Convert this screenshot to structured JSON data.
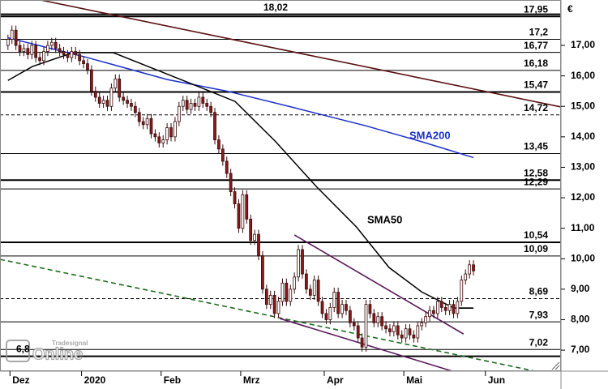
{
  "chart_data": {
    "type": "candlestick",
    "currency": "€",
    "watermark": [
      "Tradesignal",
      "Online"
    ],
    "xlim": [
      -2,
      139
    ],
    "ylim": [
      6.31,
      18.49
    ],
    "xticks": [
      {
        "value": 0.5,
        "label": "Dez"
      },
      {
        "value": 18.5,
        "label": "2020"
      },
      {
        "value": 38.5,
        "label": "Feb"
      },
      {
        "value": 58.5,
        "label": "Mrz"
      },
      {
        "value": 79.5,
        "label": "Apr"
      },
      {
        "value": 99.5,
        "label": "Mai"
      },
      {
        "value": 120,
        "label": "Jun"
      }
    ],
    "yticks": [
      {
        "value": 7,
        "label": "7,00"
      },
      {
        "value": 8,
        "label": "8,00"
      },
      {
        "value": 9,
        "label": "9,00"
      },
      {
        "value": 10,
        "label": "10,00"
      },
      {
        "value": 11,
        "label": "11,00"
      },
      {
        "value": 12,
        "label": "12,00"
      },
      {
        "value": 13,
        "label": "13,00"
      },
      {
        "value": 14,
        "label": "14,00"
      },
      {
        "value": 15,
        "label": "15,00"
      },
      {
        "value": 16,
        "label": "16,00"
      },
      {
        "value": 17,
        "label": "17,00"
      }
    ],
    "up_color": "#ffffff",
    "down_color": "#8b1a1a",
    "open": [
      17.0,
      17.2,
      17.5,
      17.0,
      16.8,
      16.9,
      16.7,
      17.0,
      16.6,
      16.5,
      16.8,
      17.0,
      17.1,
      16.9,
      16.8,
      16.7,
      16.6,
      16.8,
      16.7,
      16.5,
      16.4,
      16.2,
      15.5,
      15.3,
      15.1,
      15.2,
      15.0,
      15.6,
      15.9,
      15.3,
      15.2,
      15.1,
      15.0,
      14.8,
      14.5,
      14.4,
      14.6,
      14.1,
      14.0,
      13.8,
      13.9,
      14.3,
      14.0,
      14.5,
      15.0,
      15.2,
      14.9,
      15.1,
      15.0,
      15.3,
      15.1,
      15.0,
      14.8,
      13.9,
      13.6,
      13.2,
      12.8,
      12.2,
      11.8,
      11.0,
      12.1,
      11.3,
      10.6,
      10.8,
      10.1,
      9.0,
      8.5,
      8.8,
      8.2,
      8.6,
      9.2,
      8.6,
      9.0,
      9.4,
      10.3,
      9.5,
      9.0,
      8.8,
      9.3,
      8.6,
      8.2,
      8.0,
      8.4,
      8.9,
      8.2,
      8.5,
      8.3,
      7.9,
      7.8,
      7.4,
      7.1,
      8.5,
      8.2,
      7.9,
      8.1,
      7.8,
      7.7,
      7.6,
      7.8,
      7.5,
      7.4,
      7.7,
      7.5,
      7.4,
      7.8,
      7.9,
      8.1,
      8.3,
      8.2,
      8.6,
      8.4,
      8.3,
      8.5,
      8.2,
      8.6,
      9.3,
      9.5,
      9.8
    ],
    "high": [
      17.35,
      17.65,
      17.65,
      17.15,
      17.05,
      17.05,
      17.15,
      17.15,
      16.75,
      16.95,
      17.15,
      17.25,
      17.25,
      17.05,
      16.95,
      16.85,
      16.95,
      16.95,
      16.85,
      16.65,
      16.55,
      16.35,
      15.65,
      15.45,
      15.35,
      15.35,
      15.75,
      16.05,
      16.05,
      15.45,
      15.35,
      15.25,
      15.15,
      14.95,
      14.65,
      14.75,
      14.75,
      14.25,
      14.15,
      14.05,
      14.45,
      14.45,
      14.65,
      15.15,
      15.35,
      15.35,
      15.25,
      15.25,
      15.45,
      15.45,
      15.25,
      15.15,
      14.95,
      14.05,
      13.75,
      13.35,
      12.95,
      12.35,
      11.95,
      12.25,
      12.25,
      11.45,
      10.95,
      10.95,
      10.25,
      9.15,
      8.95,
      8.95,
      8.75,
      9.35,
      9.35,
      9.15,
      9.55,
      10.45,
      10.45,
      9.65,
      9.15,
      9.45,
      9.45,
      8.75,
      8.35,
      8.55,
      9.05,
      9.05,
      8.65,
      8.65,
      8.45,
      8.05,
      7.95,
      7.55,
      8.65,
      8.65,
      8.35,
      8.25,
      8.25,
      7.95,
      7.85,
      7.95,
      7.95,
      7.65,
      7.85,
      7.85,
      7.65,
      7.95,
      8.05,
      8.25,
      8.45,
      8.45,
      8.75,
      8.75,
      8.55,
      8.65,
      8.65,
      8.75,
      9.45,
      9.65,
      9.95,
      9.95
    ],
    "low": [
      16.85,
      17.05,
      16.85,
      16.65,
      16.65,
      16.55,
      16.55,
      16.45,
      16.35,
      16.35,
      16.65,
      16.85,
      16.75,
      16.65,
      16.55,
      16.45,
      16.45,
      16.55,
      16.35,
      16.25,
      16.05,
      15.35,
      15.15,
      14.95,
      14.95,
      14.85,
      14.85,
      15.45,
      15.15,
      15.05,
      14.95,
      14.85,
      14.65,
      14.35,
      14.25,
      14.25,
      13.95,
      13.85,
      13.65,
      13.65,
      13.75,
      13.85,
      13.85,
      14.35,
      14.85,
      14.75,
      14.75,
      14.85,
      14.85,
      14.95,
      14.85,
      14.65,
      13.75,
      13.45,
      13.05,
      12.65,
      12.05,
      11.65,
      10.85,
      10.85,
      11.15,
      10.45,
      10.45,
      9.95,
      8.85,
      8.35,
      8.35,
      8.05,
      8.05,
      8.45,
      8.45,
      8.45,
      8.85,
      9.25,
      9.35,
      8.85,
      8.65,
      8.65,
      8.45,
      8.05,
      7.85,
      7.85,
      8.25,
      8.05,
      8.05,
      8.15,
      7.75,
      7.65,
      7.25,
      6.95,
      6.95,
      8.05,
      7.75,
      7.75,
      7.65,
      7.55,
      7.45,
      7.45,
      7.35,
      7.25,
      7.25,
      7.35,
      7.25,
      7.25,
      7.65,
      7.75,
      7.95,
      8.05,
      8.05,
      8.25,
      8.15,
      8.15,
      8.05,
      8.05,
      8.45,
      9.15,
      9.35,
      9.45
    ],
    "close": [
      17.2,
      17.5,
      17.0,
      16.8,
      16.9,
      16.7,
      17.0,
      16.6,
      16.5,
      16.8,
      17.0,
      17.1,
      16.9,
      16.8,
      16.7,
      16.6,
      16.8,
      16.7,
      16.5,
      16.4,
      16.2,
      15.5,
      15.3,
      15.1,
      15.2,
      15.0,
      15.6,
      15.9,
      15.3,
      15.2,
      15.1,
      15.0,
      14.8,
      14.5,
      14.4,
      14.6,
      14.1,
      14.0,
      13.8,
      13.9,
      14.3,
      14.0,
      14.5,
      15.0,
      15.2,
      14.9,
      15.1,
      15.0,
      15.3,
      15.1,
      15.0,
      14.8,
      13.9,
      13.6,
      13.2,
      12.8,
      12.2,
      11.8,
      11.0,
      12.1,
      11.3,
      10.6,
      10.8,
      10.1,
      9.0,
      8.5,
      8.8,
      8.2,
      8.6,
      9.2,
      8.6,
      9.0,
      9.4,
      10.3,
      9.5,
      9.0,
      8.8,
      9.3,
      8.6,
      8.2,
      8.0,
      8.4,
      8.9,
      8.2,
      8.5,
      8.3,
      7.9,
      7.8,
      7.4,
      7.1,
      8.5,
      8.2,
      7.9,
      8.1,
      7.8,
      7.7,
      7.6,
      7.8,
      7.5,
      7.4,
      7.7,
      7.5,
      7.4,
      7.8,
      7.9,
      8.1,
      8.3,
      8.2,
      8.6,
      8.4,
      8.3,
      8.5,
      8.2,
      8.6,
      9.3,
      9.5,
      9.8,
      9.6
    ],
    "levels": [
      {
        "value": 18.02,
        "label": "18,02",
        "style": "thick",
        "label_pos": "center"
      },
      {
        "value": 17.95,
        "label": "17,95",
        "style": "thick",
        "label_pos": "right"
      },
      {
        "value": 17.2,
        "label": "17,2",
        "style": "thin",
        "label_pos": "right"
      },
      {
        "value": 16.77,
        "label": "16,77",
        "style": "thin",
        "label_pos": "right"
      },
      {
        "value": 16.18,
        "label": "16,18",
        "style": "thin",
        "label_pos": "right"
      },
      {
        "value": 15.47,
        "label": "15,47",
        "style": "thick",
        "label_pos": "right"
      },
      {
        "value": 14.72,
        "label": "14,72",
        "style": "dashed",
        "label_pos": "right"
      },
      {
        "value": 13.45,
        "label": "13,45",
        "style": "thin",
        "label_pos": "right"
      },
      {
        "value": 12.58,
        "label": "12,58",
        "style": "thick",
        "label_pos": "right"
      },
      {
        "value": 12.29,
        "label": "12,29",
        "style": "thin",
        "label_pos": "right"
      },
      {
        "value": 10.54,
        "label": "10,54",
        "style": "thick",
        "label_pos": "right"
      },
      {
        "value": 10.09,
        "label": "10,09",
        "style": "thin",
        "label_pos": "right"
      },
      {
        "value": 8.69,
        "label": "8,69",
        "style": "dashed",
        "label_pos": "right"
      },
      {
        "value": 7.93,
        "label": "7,93",
        "style": "thin",
        "label_pos": "right"
      },
      {
        "value": 7.02,
        "label": "7,02",
        "style": "thin",
        "label_pos": "right"
      },
      {
        "value": 6.8,
        "label": "6,8",
        "style": "thick",
        "label_pos": "left"
      }
    ],
    "trendlines": [
      {
        "color": "#5a1010",
        "style": "solid",
        "x": [
          8.2,
          139
        ],
        "y": [
          18.49,
          14.98
        ]
      },
      {
        "color": "#1f6b1f",
        "style": "dashed",
        "x": [
          -2,
          132.5
        ],
        "y": [
          9.98,
          6.31
        ]
      },
      {
        "color": "#5b1a5b",
        "style": "solid",
        "x": [
          72,
          114.5
        ],
        "y": [
          10.78,
          7.53
        ]
      },
      {
        "color": "#5b1a5b",
        "style": "solid",
        "x": [
          68.3,
          111.7
        ],
        "y": [
          8.04,
          6.31
        ]
      },
      {
        "color": "#000000",
        "style": "solid",
        "x": [
          113,
          117
        ],
        "y": [
          8.38,
          8.38
        ]
      }
    ],
    "series": [
      {
        "name": "SMA200",
        "color": "#1a2fcc",
        "x": [
          0,
          20,
          40,
          55,
          70,
          90,
          104,
          117
        ],
        "values": [
          17.25,
          16.6,
          15.88,
          15.5,
          15.02,
          14.36,
          13.84,
          13.32
        ]
      },
      {
        "name": "SMA50",
        "color": "#000000",
        "x": [
          0,
          6.2,
          16.3,
          26.5,
          36.7,
          46.9,
          57.1,
          67.3,
          77.5,
          87.6,
          95.8,
          104,
          112.1,
          116.8
        ],
        "values": [
          15.85,
          16.31,
          16.76,
          16.76,
          16.23,
          15.7,
          15.16,
          13.84,
          12.37,
          11.04,
          9.71,
          8.91,
          8.38,
          8.38
        ]
      }
    ]
  }
}
